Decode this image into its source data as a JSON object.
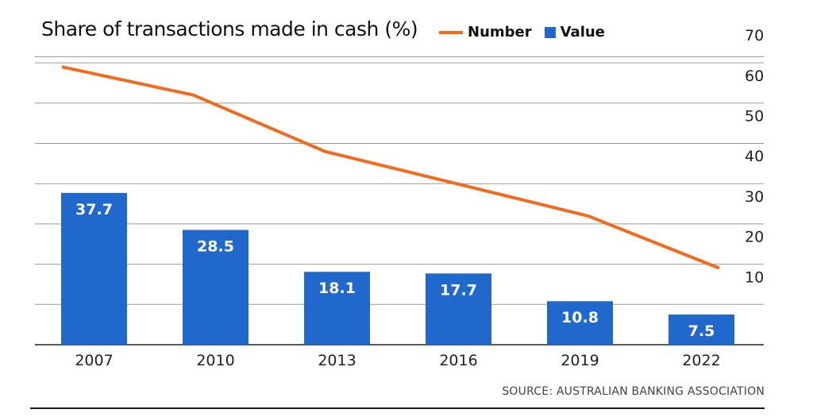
{
  "chart_data": {
    "type": "bar+line",
    "title": "Share of transactions made in cash (%)",
    "categories": [
      "2007",
      "2010",
      "2013",
      "2016",
      "2019",
      "2022"
    ],
    "series": [
      {
        "name": "Value",
        "type": "bar",
        "values": [
          37.7,
          28.5,
          18.1,
          17.7,
          10.8,
          7.5
        ],
        "color": "#2168cc"
      },
      {
        "name": "Number",
        "type": "line",
        "values": [
          69,
          62,
          48,
          40,
          32,
          19
        ],
        "color": "#f26a1b"
      }
    ],
    "yaxis": {
      "side": "right",
      "ticks": [
        "10",
        "20",
        "30",
        "40",
        "50",
        "60",
        "70"
      ],
      "ylim": [
        0,
        70
      ]
    },
    "grid": true,
    "legend_position": "top"
  },
  "legend": {
    "line_label": "Number",
    "bar_label": "Value"
  },
  "source": "SOURCE: AUSTRALIAN BANKING ASSOCIATION"
}
